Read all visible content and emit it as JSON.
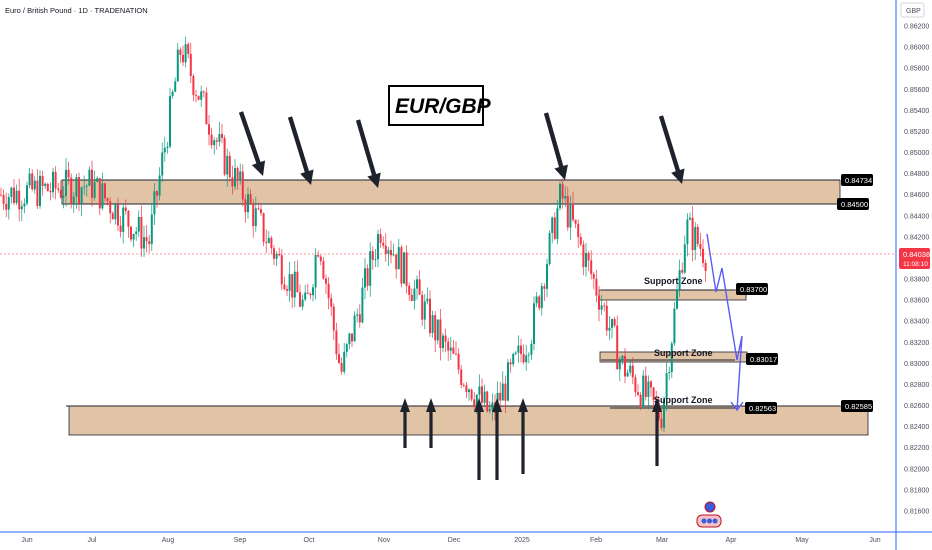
{
  "header": {
    "symbol_title": "Euro / British Pound · 1D · TRADENATION",
    "currency_label": "GBP"
  },
  "annotation_title": "EUR/GBP",
  "chart_data": {
    "type": "candlestick",
    "title": "EUR/GBP",
    "y_unit": "GBP",
    "ylim": [
      0.815,
      0.8225
    ],
    "y_ticks": [
      "0.86200",
      "0.86000",
      "0.85800",
      "0.85600",
      "0.85400",
      "0.85200",
      "0.85000",
      "0.84800",
      "0.84600",
      "0.84400",
      "0.84200",
      "0.84000",
      "0.83800",
      "0.83600",
      "0.83400",
      "0.83200",
      "0.83000",
      "0.82800",
      "0.82600",
      "0.82400",
      "0.82200",
      "0.82000",
      "0.81800",
      "0.81600"
    ],
    "x_ticks": [
      "Jun",
      "Jul",
      "Aug",
      "Sep",
      "Oct",
      "Nov",
      "Dec",
      "2025",
      "Feb",
      "Mar",
      "Apr",
      "May",
      "Jun"
    ],
    "price_path_keypoints": [
      {
        "date": "Jun",
        "close": 0.846
      },
      {
        "date": "Jul",
        "close": 0.847
      },
      {
        "date": "Jul",
        "close": 0.8415
      },
      {
        "date": "Aug",
        "close": 0.86
      },
      {
        "date": "Aug",
        "close": 0.85
      },
      {
        "date": "Sep",
        "close": 0.842
      },
      {
        "date": "Oct",
        "close": 0.835
      },
      {
        "date": "Oct",
        "close": 0.842
      },
      {
        "date": "Nov",
        "close": 0.829
      },
      {
        "date": "Nov",
        "close": 0.843
      },
      {
        "date": "Dec",
        "close": 0.832
      },
      {
        "date": "Dec",
        "close": 0.825
      },
      {
        "date": "2025",
        "close": 0.833
      },
      {
        "date": "2025",
        "close": 0.846
      },
      {
        "date": "Feb",
        "close": 0.836
      },
      {
        "date": "Feb",
        "close": 0.83
      },
      {
        "date": "Mar",
        "close": 0.825
      },
      {
        "date": "Mar",
        "close": 0.843
      },
      {
        "date": "Mar",
        "close": 0.8404
      }
    ],
    "resistance_zone": [
      0.845,
      0.84734
    ],
    "support_zones": [
      {
        "label": "Support Zone",
        "level": 0.837
      },
      {
        "label": "Support Zone",
        "level": 0.83017
      },
      {
        "label": "Support Zone",
        "level": 0.82563
      }
    ],
    "lower_support_zone": [
      0.823,
      0.82585
    ],
    "last_price": "0.84038",
    "countdown": "11:08:10",
    "price_tags": [
      "0.84734",
      "0.84500",
      "0.83700",
      "0.83017",
      "0.82563",
      "0.82585"
    ],
    "projection_path": [
      0.8425,
      0.837,
      0.8395,
      0.8302,
      0.833,
      0.8256
    ]
  },
  "colors": {
    "up_candle": "#089981",
    "down_candle": "#f23645",
    "zone_fill": "#d9b48f",
    "arrow": "#1e222d",
    "projection": "#5b5bf5",
    "last_price_line": "#f23645",
    "tag_bg": "#000000"
  }
}
